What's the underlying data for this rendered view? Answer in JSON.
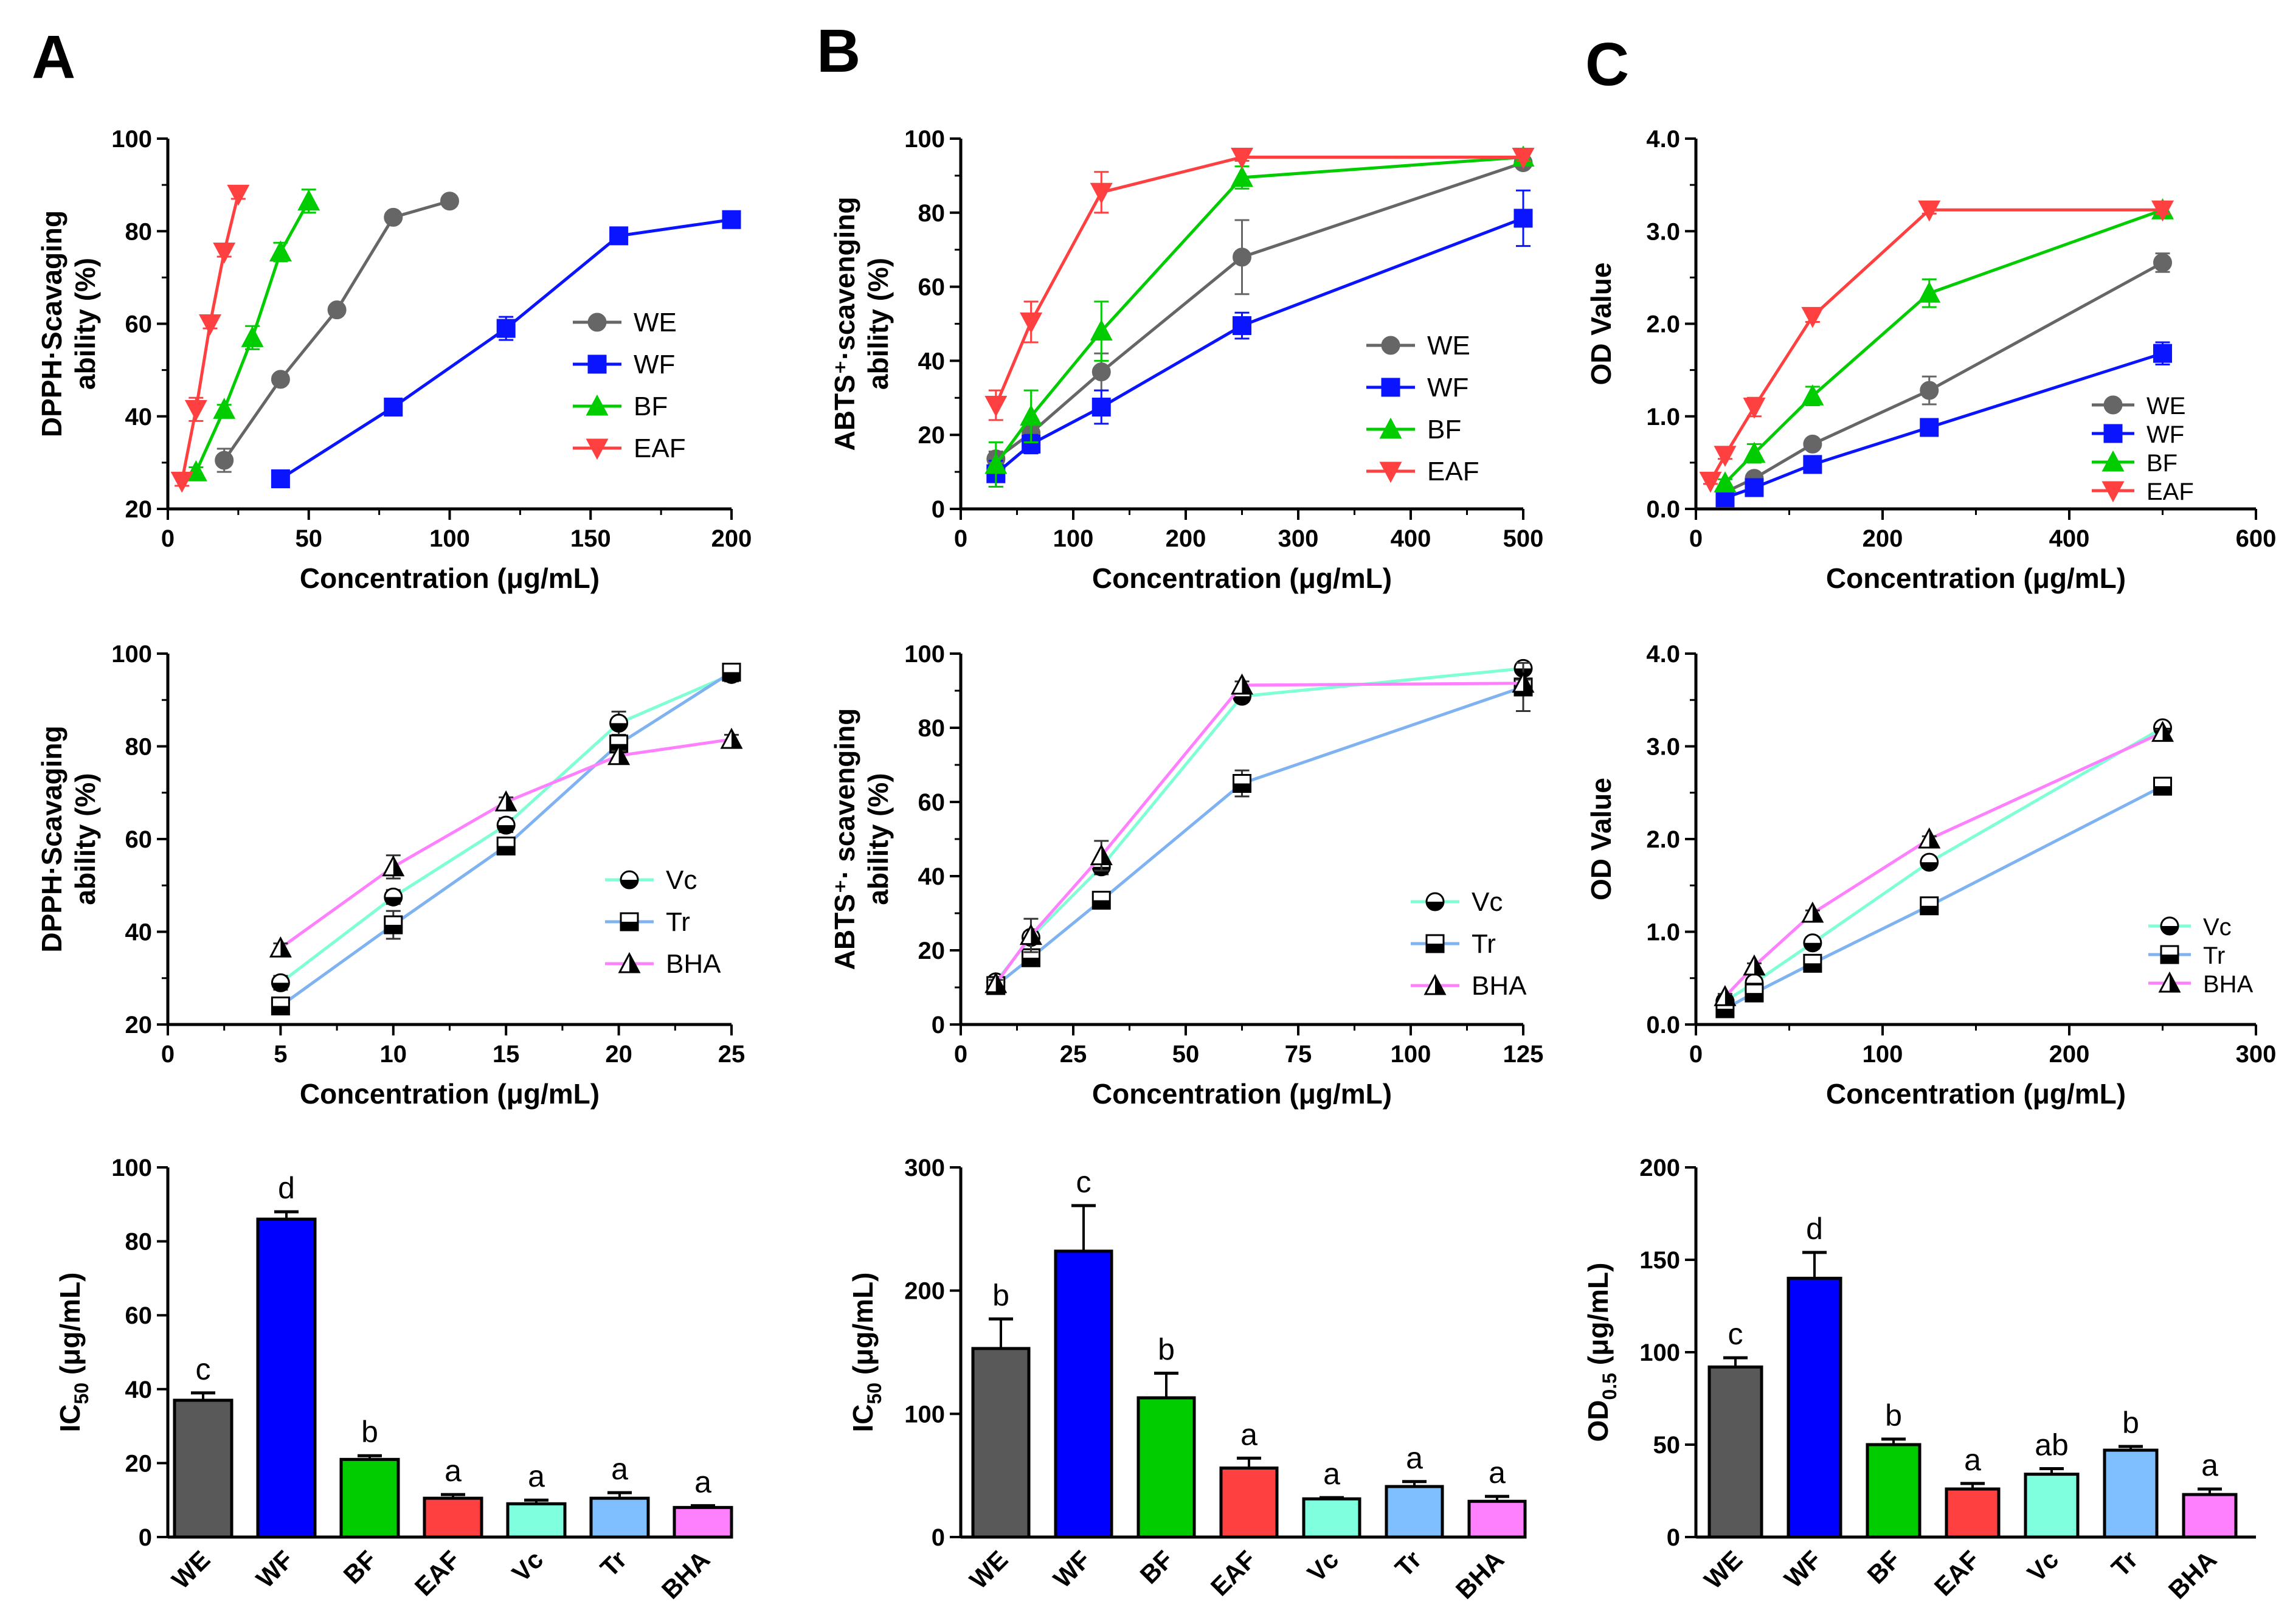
{
  "panel_letters": [
    "A",
    "B",
    "C"
  ],
  "chart_data": [
    {
      "id": "a1",
      "type": "line",
      "panel": "A",
      "xlabel": "Concentration (μg/mL)",
      "ylabel_lines": [
        "DPPH·Scavaging",
        "ability (%)"
      ],
      "xlim": [
        0,
        200
      ],
      "ylim": [
        20,
        100
      ],
      "xticks": [
        "0",
        "50",
        "100",
        "150",
        "200"
      ],
      "yticks": [
        "20",
        "40",
        "60",
        "80",
        "100"
      ],
      "series": [
        {
          "name": "WE",
          "color": "#666666",
          "marker": "circle",
          "x": [
            20,
            40,
            60,
            80,
            100
          ],
          "y": [
            30.5,
            48,
            63,
            83,
            86.5
          ],
          "err": [
            2.5,
            1,
            1,
            1,
            1
          ]
        },
        {
          "name": "WF",
          "color": "#0a14ff",
          "marker": "square",
          "x": [
            40,
            80,
            120,
            160,
            200
          ],
          "y": [
            26.5,
            42,
            59,
            79,
            82.5
          ],
          "err": [
            0.8,
            1,
            2.5,
            1,
            1
          ]
        },
        {
          "name": "BF",
          "color": "#00cc00",
          "marker": "triangle-up",
          "x": [
            10,
            20,
            30,
            40,
            50
          ],
          "y": [
            28,
            41.5,
            57,
            75.5,
            86.5
          ],
          "err": [
            1,
            1,
            2.5,
            2,
            2.5
          ]
        },
        {
          "name": "EAF",
          "color": "#ff4040",
          "marker": "triangle-down",
          "x": [
            5,
            10,
            15,
            20,
            25
          ],
          "y": [
            26,
            41.5,
            60,
            75.5,
            88
          ],
          "err": [
            1,
            2.5,
            1,
            1,
            1
          ]
        }
      ]
    },
    {
      "id": "b1",
      "type": "line",
      "panel": "B",
      "xlabel": "Concentration (μg/mL)",
      "ylabel_lines": [
        "ABTS⁺·scavenging",
        "ability (%)"
      ],
      "xlim": [
        0,
        500
      ],
      "ylim": [
        0,
        100
      ],
      "xticks": [
        "0",
        "100",
        "200",
        "300",
        "400",
        "500"
      ],
      "yticks": [
        "0",
        "20",
        "40",
        "60",
        "80",
        "100"
      ],
      "series": [
        {
          "name": "WE",
          "color": "#666666",
          "marker": "circle",
          "x": [
            31.25,
            62.5,
            125,
            250,
            500
          ],
          "y": [
            13.5,
            20.5,
            37,
            68,
            93.5
          ],
          "err": [
            2,
            2,
            5,
            10,
            1
          ]
        },
        {
          "name": "WF",
          "color": "#0a14ff",
          "marker": "square",
          "x": [
            31.25,
            62.5,
            125,
            250,
            500
          ],
          "y": [
            9.5,
            17.5,
            27.5,
            49.5,
            78.5
          ],
          "err": [
            3.5,
            2.5,
            4.5,
            3.5,
            7.5
          ]
        },
        {
          "name": "BF",
          "color": "#00cc00",
          "marker": "triangle-up",
          "x": [
            31.25,
            62.5,
            125,
            250,
            500
          ],
          "y": [
            12,
            25,
            48,
            89.5,
            95
          ],
          "err": [
            6,
            7,
            8,
            3,
            1
          ]
        },
        {
          "name": "EAF",
          "color": "#ff4040",
          "marker": "triangle-down",
          "x": [
            31.25,
            62.5,
            125,
            250,
            500
          ],
          "y": [
            28,
            50.5,
            85.5,
            95,
            95
          ],
          "err": [
            4,
            5.5,
            5.5,
            1,
            1
          ]
        }
      ]
    },
    {
      "id": "c1",
      "type": "line",
      "panel": "C",
      "xlabel": "Concentration (μg/mL)",
      "ylabel_lines": [
        "OD Value"
      ],
      "xlim": [
        0,
        600
      ],
      "ylim": [
        0,
        4
      ],
      "xticks": [
        "0",
        "200",
        "400",
        "600"
      ],
      "yticks": [
        "0.0",
        "1.0",
        "2.0",
        "3.0",
        "4.0"
      ],
      "series": [
        {
          "name": "WE",
          "color": "#666666",
          "marker": "circle",
          "x": [
            31.25,
            62.5,
            125,
            250,
            500
          ],
          "y": [
            0.18,
            0.33,
            0.7,
            1.28,
            2.66
          ],
          "err": [
            0.03,
            0.03,
            0.05,
            0.15,
            0.1
          ]
        },
        {
          "name": "WF",
          "color": "#0a14ff",
          "marker": "square",
          "x": [
            31.25,
            62.5,
            125,
            250,
            500
          ],
          "y": [
            0.12,
            0.23,
            0.48,
            0.88,
            1.68
          ],
          "err": [
            0.03,
            0.03,
            0.03,
            0.04,
            0.12
          ]
        },
        {
          "name": "BF",
          "color": "#00cc00",
          "marker": "triangle-up",
          "x": [
            31.25,
            62.5,
            125,
            250,
            500
          ],
          "y": [
            0.28,
            0.6,
            1.22,
            2.33,
            3.23
          ],
          "err": [
            0.04,
            0.1,
            0.1,
            0.15,
            0.04
          ]
        },
        {
          "name": "EAF",
          "color": "#ff4040",
          "marker": "triangle-down",
          "x": [
            15.6,
            31.25,
            62.5,
            125,
            250,
            500
          ],
          "y": [
            0.3,
            0.58,
            1.1,
            2.08,
            3.23,
            3.23
          ],
          "err": [
            0.03,
            0.04,
            0.1,
            0.06,
            0.04,
            0.04
          ]
        }
      ]
    },
    {
      "id": "a2",
      "type": "line",
      "panel": "A",
      "xlabel": "Concentration (μg/mL)",
      "ylabel_lines": [
        "DPPH·Scavaging",
        "ability (%)"
      ],
      "xlim": [
        0,
        25
      ],
      "ylim": [
        20,
        100
      ],
      "xticks": [
        "0",
        "5",
        "10",
        "15",
        "20",
        "25"
      ],
      "yticks": [
        "20",
        "40",
        "60",
        "80",
        "100"
      ],
      "series": [
        {
          "name": "Vc",
          "color": "#7fffd4",
          "marker": "circle-half",
          "x": [
            5,
            10,
            15,
            20,
            25
          ],
          "y": [
            29,
            47.5,
            63,
            85,
            95.5
          ],
          "err": [
            1.5,
            1.5,
            1.5,
            2.5,
            1.5
          ]
        },
        {
          "name": "Tr",
          "color": "#7fb2f0",
          "marker": "square-half",
          "x": [
            5,
            10,
            15,
            20,
            25
          ],
          "y": [
            24,
            41.5,
            58.5,
            80.5,
            96
          ],
          "err": [
            1.5,
            3,
            1,
            1.5,
            1
          ]
        },
        {
          "name": "BHA",
          "color": "#ff80ff",
          "marker": "triangle-half",
          "x": [
            5,
            10,
            15,
            20,
            25
          ],
          "y": [
            36.5,
            54,
            68,
            78,
            81.5
          ],
          "err": [
            1,
            2.5,
            1,
            1,
            1
          ]
        }
      ]
    },
    {
      "id": "b2",
      "type": "line",
      "panel": "B",
      "xlabel": "Concentration (μg/mL)",
      "ylabel_lines": [
        "ABTS⁺· scavenging",
        "ability (%)"
      ],
      "xlim": [
        0,
        125
      ],
      "ylim": [
        0,
        100
      ],
      "xticks": [
        "0",
        "25",
        "50",
        "75",
        "100",
        "125"
      ],
      "yticks": [
        "0",
        "20",
        "40",
        "60",
        "80",
        "100"
      ],
      "series": [
        {
          "name": "Vc",
          "color": "#7fffd4",
          "marker": "circle-half",
          "x": [
            7.8,
            15.6,
            31.25,
            62.5,
            125
          ],
          "y": [
            11.5,
            23.5,
            42.5,
            88.5,
            96
          ],
          "err": [
            1,
            1.5,
            2,
            1.5,
            1
          ]
        },
        {
          "name": "Tr",
          "color": "#7fb2f0",
          "marker": "square-half",
          "x": [
            7.8,
            15.6,
            31.25,
            62.5,
            125
          ],
          "y": [
            10.5,
            18,
            33.5,
            65,
            91
          ],
          "err": [
            1,
            1.5,
            1,
            3.5,
            6.5
          ]
        },
        {
          "name": "BHA",
          "color": "#ff80ff",
          "marker": "triangle-half",
          "x": [
            7.8,
            15.6,
            31.25,
            62.5,
            125
          ],
          "y": [
            11,
            24,
            45.5,
            91.5,
            92
          ],
          "err": [
            1,
            4.5,
            4,
            1,
            1
          ]
        }
      ]
    },
    {
      "id": "c2",
      "type": "line",
      "panel": "C",
      "xlabel": "Concentration (μg/mL)",
      "ylabel_lines": [
        "OD Value"
      ],
      "xlim": [
        0,
        300
      ],
      "ylim": [
        0,
        4
      ],
      "xticks": [
        "0",
        "100",
        "200",
        "300"
      ],
      "yticks": [
        "0.0",
        "1.0",
        "2.0",
        "3.0",
        "4.0"
      ],
      "series": [
        {
          "name": "Vc",
          "color": "#7fffd4",
          "marker": "circle-half",
          "x": [
            15.6,
            31.25,
            62.5,
            125,
            250
          ],
          "y": [
            0.25,
            0.45,
            0.88,
            1.75,
            3.2
          ],
          "err": [
            0.03,
            0.04,
            0.06,
            0.06,
            0.03
          ]
        },
        {
          "name": "Tr",
          "color": "#7fb2f0",
          "marker": "square-half",
          "x": [
            15.6,
            31.25,
            62.5,
            125,
            250
          ],
          "y": [
            0.17,
            0.34,
            0.66,
            1.28,
            2.57
          ],
          "err": [
            0.03,
            0.03,
            0.03,
            0.03,
            0.03
          ]
        },
        {
          "name": "BHA",
          "color": "#ff80ff",
          "marker": "triangle-half",
          "x": [
            15.6,
            31.25,
            62.5,
            125,
            250
          ],
          "y": [
            0.3,
            0.63,
            1.2,
            2.0,
            3.15
          ],
          "err": [
            0.03,
            0.03,
            0.03,
            0.03,
            0.03
          ]
        }
      ]
    },
    {
      "id": "a3",
      "type": "bar",
      "panel": "A",
      "ylabel_main": "IC",
      "ylabel_sub": "50",
      "ylabel_rest": " (μg/mL)",
      "ylim": [
        0,
        100
      ],
      "yticks": [
        "0",
        "20",
        "40",
        "60",
        "80",
        "100"
      ],
      "categories": [
        "WE",
        "WF",
        "BF",
        "EAF",
        "Vc",
        "Tr",
        "BHA"
      ],
      "values": [
        37,
        86,
        21,
        10.5,
        9,
        10.5,
        8
      ],
      "errors": [
        2,
        2,
        1,
        1,
        1,
        1.5,
        0.5
      ],
      "letters": [
        "c",
        "d",
        "b",
        "a",
        "a",
        "a",
        "a"
      ],
      "colors": [
        "#595959",
        "#0000ff",
        "#00cc00",
        "#ff4040",
        "#80ffdf",
        "#7fbfff",
        "#ff80ff"
      ]
    },
    {
      "id": "b3",
      "type": "bar",
      "panel": "B",
      "ylabel_main": "IC",
      "ylabel_sub": "50",
      "ylabel_rest": " (μg/mL)",
      "ylim": [
        0,
        300
      ],
      "yticks": [
        "0",
        "100",
        "200",
        "300"
      ],
      "categories": [
        "WE",
        "WF",
        "BF",
        "EAF",
        "Vc",
        "Tr",
        "BHA"
      ],
      "values": [
        153,
        232,
        113,
        56,
        31,
        41,
        29
      ],
      "errors": [
        24,
        37,
        20,
        8,
        1,
        4,
        4
      ],
      "letters": [
        "b",
        "c",
        "b",
        "a",
        "a",
        "a",
        "a"
      ],
      "colors": [
        "#595959",
        "#0000ff",
        "#00cc00",
        "#ff4040",
        "#80ffdf",
        "#7fbfff",
        "#ff80ff"
      ]
    },
    {
      "id": "c3",
      "type": "bar",
      "panel": "C",
      "ylabel_main": "OD",
      "ylabel_sub": "0.5",
      "ylabel_rest": " (μg/mL)",
      "ylim": [
        0,
        200
      ],
      "yticks": [
        "0",
        "50",
        "100",
        "150",
        "200"
      ],
      "categories": [
        "WE",
        "WF",
        "BF",
        "EAF",
        "Vc",
        "Tr",
        "BHA"
      ],
      "values": [
        92,
        140,
        50,
        26,
        34,
        47,
        23
      ],
      "errors": [
        5,
        14,
        3,
        3,
        3,
        2,
        3
      ],
      "letters": [
        "c",
        "d",
        "b",
        "a",
        "ab",
        "b",
        "a"
      ],
      "colors": [
        "#595959",
        "#0000ff",
        "#00cc00",
        "#ff4040",
        "#80ffdf",
        "#7fbfff",
        "#ff80ff"
      ]
    }
  ]
}
